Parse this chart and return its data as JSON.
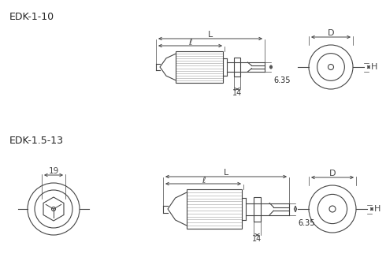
{
  "bg_color": "#ffffff",
  "line_color": "#444444",
  "text_color": "#222222",
  "title1": "EDK-1-10",
  "title2": "EDK-1.5-13",
  "dim_14": "14",
  "dim_635": "6.35",
  "dim_L": "L",
  "dim_l": "ℓ",
  "dim_D": "D",
  "dim_H": "H",
  "dim_19": "19"
}
